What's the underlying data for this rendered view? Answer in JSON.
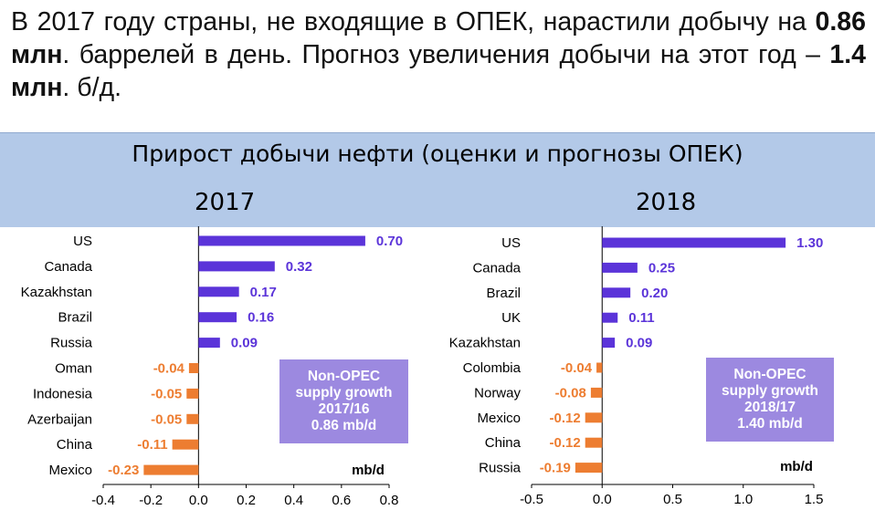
{
  "headline": {
    "part1": "В 2017 году страны, не входящие в ОПЕК, нарастили добычу на ",
    "bold1": "0.86 млн",
    "part2": ". баррелей в день. Прогноз увеличения добычи на этот год – ",
    "bold2": "1.4 млн",
    "part3": ". б/д."
  },
  "band": {
    "title": "Прирост добычи нефти (оценки и прогнозы ОПЕК)",
    "year_left": "2017",
    "year_right": "2018"
  },
  "colors": {
    "positive": "#5b34d9",
    "negative": "#ed7d31",
    "box": "#9c89e0"
  },
  "chart_data": [
    {
      "type": "bar",
      "orientation": "horizontal",
      "title": "2017",
      "categories": [
        "US",
        "Canada",
        "Kazakhstan",
        "Brazil",
        "Russia",
        "Oman",
        "Indonesia",
        "Azerbaijan",
        "China",
        "Mexico"
      ],
      "values": [
        0.7,
        0.32,
        0.17,
        0.16,
        0.09,
        -0.04,
        -0.05,
        -0.05,
        -0.11,
        -0.23
      ],
      "value_labels": [
        "0.70",
        "0.32",
        "0.17",
        "0.16",
        "0.09",
        "-0.04",
        "-0.05",
        "-0.05",
        "-0.11",
        "-0.23"
      ],
      "xlim": [
        -0.4,
        0.8
      ],
      "xticks": [
        "-0.4",
        "-0.2",
        "0.0",
        "0.2",
        "0.4",
        "0.6",
        "0.8"
      ],
      "unit": "mb/d",
      "box": [
        "Non-OPEC",
        "supply growth",
        "2017/16",
        "0.86 mb/d"
      ]
    },
    {
      "type": "bar",
      "orientation": "horizontal",
      "title": "2018",
      "categories": [
        "US",
        "Canada",
        "Brazil",
        "UK",
        "Kazakhstan",
        "Colombia",
        "Norway",
        "Mexico",
        "China",
        "Russia"
      ],
      "values": [
        1.3,
        0.25,
        0.2,
        0.11,
        0.09,
        -0.04,
        -0.08,
        -0.12,
        -0.12,
        -0.19
      ],
      "value_labels": [
        "1.30",
        "0.25",
        "0.20",
        "0.11",
        "0.09",
        "-0.04",
        "-0.08",
        "-0.12",
        "-0.12",
        "-0.19"
      ],
      "xlim": [
        -0.5,
        1.5
      ],
      "xticks": [
        "-0.5",
        "0.0",
        "0.5",
        "1.0",
        "1.5"
      ],
      "unit": "mb/d",
      "box": [
        "Non-OPEC",
        "supply growth",
        "2018/17",
        "1.40 mb/d"
      ]
    }
  ]
}
